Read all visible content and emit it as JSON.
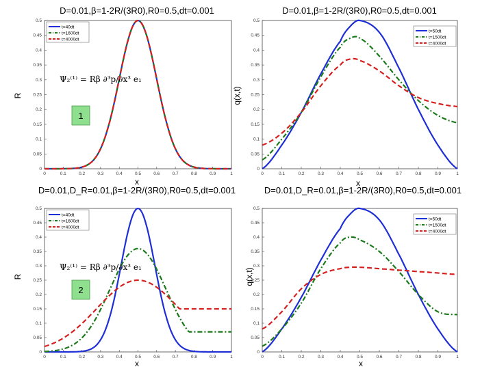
{
  "colors": {
    "series_blue": "#1f2fd6",
    "series_green": "#1a7a1a",
    "series_red": "#d62020",
    "badge_fill": "#8ee08e"
  },
  "chart_data": [
    {
      "type": "line",
      "title": "D=0.01,β=1-2R/(3R0),R0=0.5,dt=0.001",
      "xlabel": "x",
      "ylabel": "R",
      "xlim": [
        0,
        1
      ],
      "ylim": [
        0,
        0.5
      ],
      "xticks": [
        "0",
        "0.1",
        "0.2",
        "0.3",
        "0.4",
        "0.5",
        "0.6",
        "0.7",
        "0.8",
        "0.9",
        "1"
      ],
      "yticks": [
        "0",
        "0.05",
        "0.1",
        "0.15",
        "0.2",
        "0.25",
        "0.3",
        "0.35",
        "0.4",
        "0.45",
        "0.5"
      ],
      "grid": false,
      "legend_position": "top-left",
      "formula": "Ψ₂⁽¹⁾ = Rβ ∂³p/∂x³ e₁",
      "badge": "1",
      "series": [
        {
          "name": "t=40dt",
          "style": "solid",
          "color": "blue",
          "peak": 0.5,
          "sigma": 0.1
        },
        {
          "name": "t=1600dt",
          "style": "dashdot",
          "color": "green",
          "peak": 0.5,
          "sigma": 0.1
        },
        {
          "name": "t=4000dt",
          "style": "dashed",
          "color": "red",
          "peak": 0.5,
          "sigma": 0.1
        }
      ]
    },
    {
      "type": "line",
      "title": "D=0.01,β=1-2R/(3R0),R0=0.5,dt=0.001",
      "xlabel": "x",
      "ylabel": "q(x,t)",
      "xlim": [
        0,
        1
      ],
      "ylim": [
        0,
        0.5
      ],
      "xticks": [
        "0",
        "0.1",
        "0.2",
        "0.3",
        "0.4",
        "0.5",
        "0.6",
        "0.7",
        "0.8",
        "0.9",
        "1"
      ],
      "yticks": [
        "0",
        "0.05",
        "0.1",
        "0.15",
        "0.2",
        "0.25",
        "0.3",
        "0.35",
        "0.4",
        "0.45",
        "0.5"
      ],
      "grid": false,
      "legend_position": "top-right",
      "series": [
        {
          "name": "t=50dt",
          "style": "solid",
          "color": "blue",
          "x": [
            0,
            0.1,
            0.2,
            0.3,
            0.4,
            0.45,
            0.5,
            0.6,
            0.7,
            0.8,
            0.9,
            1.0
          ],
          "y": [
            0,
            0.08,
            0.19,
            0.32,
            0.43,
            0.48,
            0.5,
            0.46,
            0.34,
            0.2,
            0.08,
            0
          ]
        },
        {
          "name": "t=1500dt",
          "style": "dashdot",
          "color": "green",
          "x": [
            0,
            0.1,
            0.2,
            0.3,
            0.4,
            0.45,
            0.5,
            0.6,
            0.7,
            0.8,
            0.9,
            1.0
          ],
          "y": [
            0.03,
            0.1,
            0.19,
            0.31,
            0.41,
            0.44,
            0.44,
            0.38,
            0.3,
            0.23,
            0.18,
            0.155
          ]
        },
        {
          "name": "t=4000dt",
          "style": "dashed",
          "color": "red",
          "x": [
            0,
            0.1,
            0.2,
            0.3,
            0.4,
            0.45,
            0.5,
            0.6,
            0.7,
            0.8,
            0.9,
            1.0
          ],
          "y": [
            0.08,
            0.12,
            0.19,
            0.28,
            0.35,
            0.37,
            0.365,
            0.33,
            0.28,
            0.24,
            0.22,
            0.21
          ]
        }
      ]
    },
    {
      "type": "line",
      "title": "D=0.01,D_R=0.01,β=1-2R/(3R0),R0=0.5,dt=0.001",
      "xlabel": "x",
      "ylabel": "R",
      "xlim": [
        0,
        1
      ],
      "ylim": [
        0,
        0.5
      ],
      "xticks": [
        "0",
        "0.1",
        "0.2",
        "0.3",
        "0.4",
        "0.5",
        "0.6",
        "0.7",
        "0.8",
        "0.9",
        "1"
      ],
      "yticks": [
        "0",
        "0.05",
        "0.1",
        "0.15",
        "0.2",
        "0.25",
        "0.3",
        "0.35",
        "0.4",
        "0.45",
        "0.5"
      ],
      "grid": false,
      "legend_position": "top-left",
      "formula": "Ψ₂⁽¹⁾ = Rβ ∂³p/∂x³ e₁",
      "badge": "2",
      "series": [
        {
          "name": "t=40dt",
          "style": "solid",
          "color": "blue",
          "peak": 0.5,
          "sigma": 0.09
        },
        {
          "name": "t=1600dt",
          "style": "dashdot",
          "color": "green",
          "peak": 0.36,
          "sigma": 0.15,
          "baseline_right": 0.07
        },
        {
          "name": "t=4000dt",
          "style": "dashed",
          "color": "red",
          "peak": 0.25,
          "sigma": 0.22,
          "baseline_right": 0.15
        }
      ]
    },
    {
      "type": "line",
      "title": "D=0.01,D_R=0.01,β=1-2R/(3R0),R0=0.5,dt=0.001",
      "xlabel": "x",
      "ylabel": "q(x,t)",
      "xlim": [
        0,
        1
      ],
      "ylim": [
        0,
        0.5
      ],
      "xticks": [
        "0",
        "0.1",
        "0.2",
        "0.3",
        "0.4",
        "0.5",
        "0.6",
        "0.7",
        "0.8",
        "0.9",
        "1"
      ],
      "yticks": [
        "0",
        "0.05",
        "0.1",
        "0.15",
        "0.2",
        "0.25",
        "0.3",
        "0.35",
        "0.4",
        "0.45",
        "0.5"
      ],
      "grid": false,
      "legend_position": "top-right",
      "series": [
        {
          "name": "t=50dt",
          "style": "solid",
          "color": "blue",
          "x": [
            0,
            0.1,
            0.2,
            0.3,
            0.4,
            0.45,
            0.5,
            0.6,
            0.7,
            0.8,
            0.9,
            1.0
          ],
          "y": [
            0,
            0.08,
            0.19,
            0.32,
            0.43,
            0.48,
            0.5,
            0.46,
            0.34,
            0.2,
            0.08,
            0
          ]
        },
        {
          "name": "t=1500dt",
          "style": "dashdot",
          "color": "green",
          "x": [
            0,
            0.1,
            0.2,
            0.3,
            0.4,
            0.45,
            0.5,
            0.6,
            0.7,
            0.8,
            0.9,
            1.0
          ],
          "y": [
            0.02,
            0.08,
            0.17,
            0.29,
            0.38,
            0.4,
            0.39,
            0.35,
            0.28,
            0.2,
            0.14,
            0.13
          ]
        },
        {
          "name": "t=4000dt",
          "style": "dashed",
          "color": "red",
          "x": [
            0,
            0.1,
            0.2,
            0.3,
            0.4,
            0.45,
            0.5,
            0.6,
            0.7,
            0.8,
            0.9,
            1.0
          ],
          "y": [
            0.08,
            0.14,
            0.22,
            0.27,
            0.29,
            0.295,
            0.295,
            0.29,
            0.285,
            0.28,
            0.275,
            0.27
          ]
        }
      ]
    }
  ]
}
